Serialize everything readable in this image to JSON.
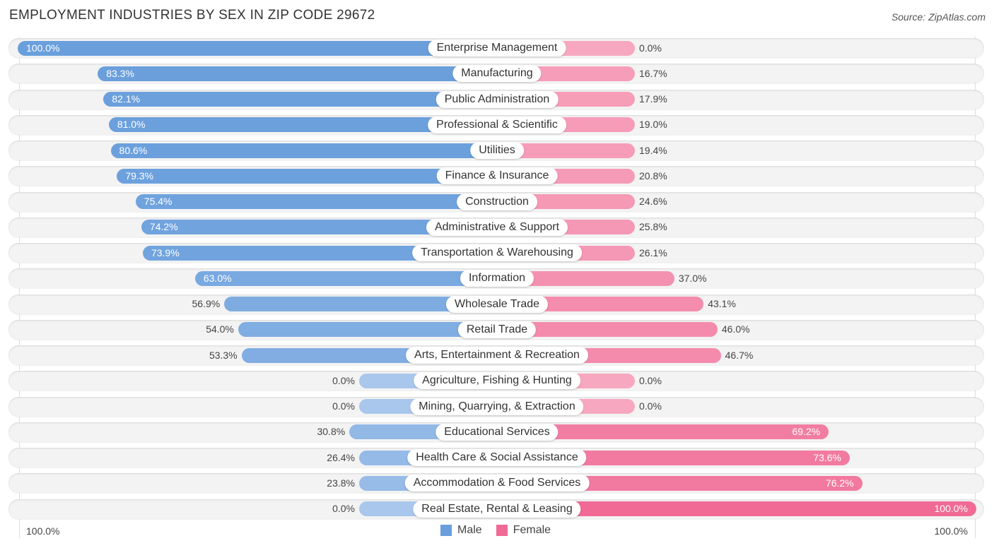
{
  "header": {
    "title": "EMPLOYMENT INDUSTRIES BY SEX IN ZIP CODE 29672",
    "source": "Source: ZipAtlas.com"
  },
  "colors": {
    "male": "#6a9fdc",
    "male_light": "#a9c7ec",
    "female": "#f06a95",
    "female_light": "#f7a8c0"
  },
  "chart_data": {
    "type": "bar",
    "orientation": "horizontal-diverging",
    "title": "EMPLOYMENT INDUSTRIES BY SEX IN ZIP CODE 29672",
    "xlabel": "",
    "ylabel": "",
    "xlim": [
      0,
      100
    ],
    "axis_labels": {
      "left": "100.0%",
      "right": "100.0%"
    },
    "legend": {
      "position": "bottom-center",
      "entries": [
        "Male",
        "Female"
      ]
    },
    "categories": [
      "Enterprise Management",
      "Manufacturing",
      "Public Administration",
      "Professional & Scientific",
      "Utilities",
      "Finance & Insurance",
      "Construction",
      "Administrative & Support",
      "Transportation & Warehousing",
      "Information",
      "Wholesale Trade",
      "Retail Trade",
      "Arts, Entertainment & Recreation",
      "Agriculture, Fishing & Hunting",
      "Mining, Quarrying, & Extraction",
      "Educational Services",
      "Health Care & Social Assistance",
      "Accommodation & Food Services",
      "Real Estate, Rental & Leasing"
    ],
    "series": [
      {
        "name": "Male",
        "values": [
          100.0,
          83.3,
          82.1,
          81.0,
          80.6,
          79.3,
          75.4,
          74.2,
          73.9,
          63.0,
          56.9,
          54.0,
          53.3,
          0.0,
          0.0,
          30.8,
          26.4,
          23.8,
          0.0
        ],
        "labels": [
          "100.0%",
          "83.3%",
          "82.1%",
          "81.0%",
          "80.6%",
          "79.3%",
          "75.4%",
          "74.2%",
          "73.9%",
          "63.0%",
          "56.9%",
          "54.0%",
          "53.3%",
          "0.0%",
          "0.0%",
          "30.8%",
          "26.4%",
          "23.8%",
          "0.0%"
        ]
      },
      {
        "name": "Female",
        "values": [
          0.0,
          16.7,
          17.9,
          19.0,
          19.4,
          20.8,
          24.6,
          25.8,
          26.1,
          37.0,
          43.1,
          46.0,
          46.7,
          0.0,
          0.0,
          69.2,
          73.6,
          76.2,
          100.0
        ],
        "labels": [
          "0.0%",
          "16.7%",
          "17.9%",
          "19.0%",
          "19.4%",
          "20.8%",
          "24.6%",
          "25.8%",
          "26.1%",
          "37.0%",
          "43.1%",
          "46.0%",
          "46.7%",
          "0.0%",
          "0.0%",
          "69.2%",
          "73.6%",
          "76.2%",
          "100.0%"
        ]
      }
    ]
  }
}
